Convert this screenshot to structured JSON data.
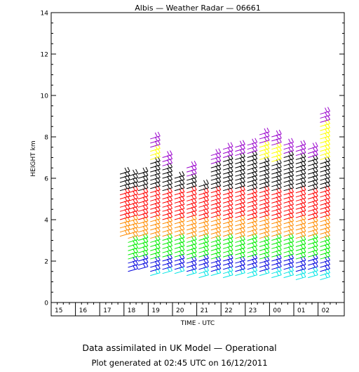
{
  "chart_data": {
    "type": "scatter",
    "title": "Albis — Weather Radar — 06661",
    "xlabel": "TIME - UTC",
    "ylabel": "HEIGHT km",
    "ylim": [
      0,
      14
    ],
    "y_ticks": [
      0,
      2,
      4,
      6,
      8,
      10,
      12,
      14
    ],
    "time_labels": [
      "15",
      "16",
      "17",
      "18",
      "19",
      "20",
      "21",
      "22",
      "23",
      "00",
      "01",
      "02"
    ],
    "height_band_colors": [
      "#00e5e5",
      "#0000dd",
      "#00ee00",
      "#ff8c00",
      "#ff0000",
      "#000000",
      "#ffff00",
      "#9900cc"
    ],
    "series": [
      {
        "time": "17:50",
        "min_km": 3.2,
        "max_km": 6.3
      },
      {
        "time": "18:10",
        "min_km": 1.5,
        "max_km": 6.2
      },
      {
        "time": "18:35",
        "min_km": 1.6,
        "max_km": 6.2
      },
      {
        "time": "19:05",
        "min_km": 1.3,
        "max_km": 7.9
      },
      {
        "time": "19:35",
        "min_km": 1.4,
        "max_km": 7.0
      },
      {
        "time": "20:05",
        "min_km": 1.4,
        "max_km": 6.0
      },
      {
        "time": "20:35",
        "min_km": 1.3,
        "max_km": 6.6
      },
      {
        "time": "21:05",
        "min_km": 1.2,
        "max_km": 5.7
      },
      {
        "time": "21:35",
        "min_km": 1.3,
        "max_km": 7.1
      },
      {
        "time": "22:05",
        "min_km": 1.2,
        "max_km": 7.4
      },
      {
        "time": "22:35",
        "min_km": 1.3,
        "max_km": 7.5
      },
      {
        "time": "23:05",
        "min_km": 1.2,
        "max_km": 7.7
      },
      {
        "time": "23:35",
        "min_km": 1.3,
        "max_km": 8.2
      },
      {
        "time": "00:05",
        "min_km": 1.2,
        "max_km": 8.1
      },
      {
        "time": "00:35",
        "min_km": 1.2,
        "max_km": 7.7
      },
      {
        "time": "01:05",
        "min_km": 1.1,
        "max_km": 7.6
      },
      {
        "time": "01:35",
        "min_km": 1.2,
        "max_km": 7.5
      },
      {
        "time": "02:05",
        "min_km": 1.1,
        "max_km": 9.2
      }
    ]
  },
  "footer": {
    "line1": "Data assimilated in UK Model — Operational",
    "line2": "Plot generated at 02:45 UTC on 16/12/2011"
  }
}
